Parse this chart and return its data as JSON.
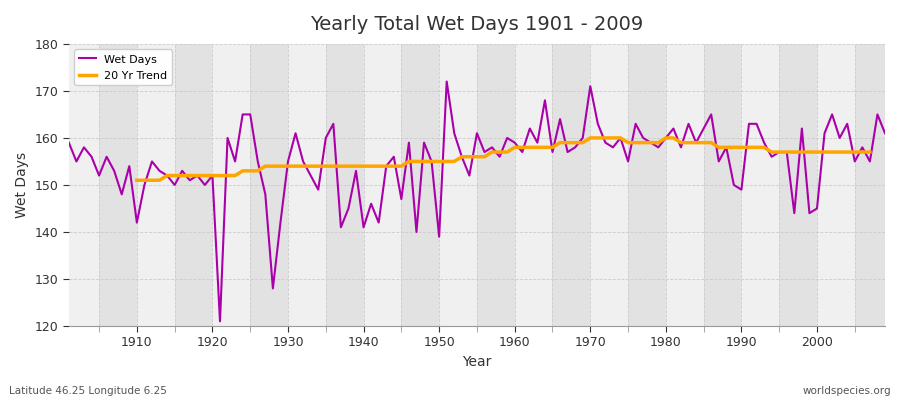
{
  "title": "Yearly Total Wet Days 1901 - 2009",
  "xlabel": "Year",
  "ylabel": "Wet Days",
  "subtitle": "Latitude 46.25 Longitude 6.25",
  "watermark": "worldspecies.org",
  "wet_days_color": "#AA00AA",
  "trend_color": "#FFA500",
  "bg_color": "#FFFFFF",
  "plot_bg_color": "#FFFFFF",
  "band_color_light": "#F0F0F0",
  "band_color_dark": "#E2E2E2",
  "grid_color": "#CCCCCC",
  "ylim": [
    120,
    180
  ],
  "xlim": [
    1901,
    2009
  ],
  "years": [
    1901,
    1902,
    1903,
    1904,
    1905,
    1906,
    1907,
    1908,
    1909,
    1910,
    1911,
    1912,
    1913,
    1914,
    1915,
    1916,
    1917,
    1918,
    1919,
    1920,
    1921,
    1922,
    1923,
    1924,
    1925,
    1926,
    1927,
    1928,
    1929,
    1930,
    1931,
    1932,
    1933,
    1934,
    1935,
    1936,
    1937,
    1938,
    1939,
    1940,
    1941,
    1942,
    1943,
    1944,
    1945,
    1946,
    1947,
    1948,
    1949,
    1950,
    1951,
    1952,
    1953,
    1954,
    1955,
    1956,
    1957,
    1958,
    1959,
    1960,
    1961,
    1962,
    1963,
    1964,
    1965,
    1966,
    1967,
    1968,
    1969,
    1970,
    1971,
    1972,
    1973,
    1974,
    1975,
    1976,
    1977,
    1978,
    1979,
    1980,
    1981,
    1982,
    1983,
    1984,
    1985,
    1986,
    1987,
    1988,
    1989,
    1990,
    1991,
    1992,
    1993,
    1994,
    1995,
    1996,
    1997,
    1998,
    1999,
    2000,
    2001,
    2002,
    2003,
    2004,
    2005,
    2006,
    2007,
    2008,
    2009
  ],
  "wet_days": [
    159,
    155,
    158,
    156,
    152,
    156,
    153,
    148,
    154,
    142,
    150,
    155,
    153,
    152,
    150,
    153,
    151,
    152,
    150,
    152,
    121,
    160,
    155,
    165,
    165,
    155,
    148,
    128,
    142,
    155,
    161,
    155,
    152,
    149,
    160,
    163,
    141,
    145,
    153,
    141,
    146,
    142,
    154,
    156,
    147,
    159,
    140,
    159,
    155,
    139,
    172,
    161,
    156,
    152,
    161,
    157,
    158,
    156,
    160,
    159,
    157,
    162,
    159,
    168,
    157,
    164,
    157,
    158,
    160,
    171,
    163,
    159,
    158,
    160,
    155,
    163,
    160,
    159,
    158,
    160,
    162,
    158,
    163,
    159,
    162,
    165,
    155,
    158,
    150,
    149,
    163,
    163,
    159,
    156,
    157,
    157,
    144,
    162,
    144,
    145,
    161,
    165,
    160,
    163,
    155,
    158,
    155,
    165,
    161
  ],
  "trend": [
    null,
    null,
    null,
    null,
    null,
    null,
    null,
    null,
    null,
    151,
    151,
    151,
    151,
    152,
    152,
    152,
    152,
    152,
    152,
    152,
    152,
    152,
    152,
    153,
    153,
    153,
    154,
    154,
    154,
    154,
    154,
    154,
    154,
    154,
    154,
    154,
    154,
    154,
    154,
    154,
    154,
    154,
    154,
    154,
    154,
    155,
    155,
    155,
    155,
    155,
    155,
    155,
    156,
    156,
    156,
    156,
    157,
    157,
    157,
    158,
    158,
    158,
    158,
    158,
    158,
    159,
    159,
    159,
    159,
    160,
    160,
    160,
    160,
    160,
    159,
    159,
    159,
    159,
    159,
    160,
    160,
    159,
    159,
    159,
    159,
    159,
    158,
    158,
    158,
    158,
    158,
    158,
    158,
    157,
    157,
    157,
    157,
    157,
    157,
    157,
    157,
    157,
    157,
    157,
    157,
    157,
    157,
    null,
    null
  ]
}
